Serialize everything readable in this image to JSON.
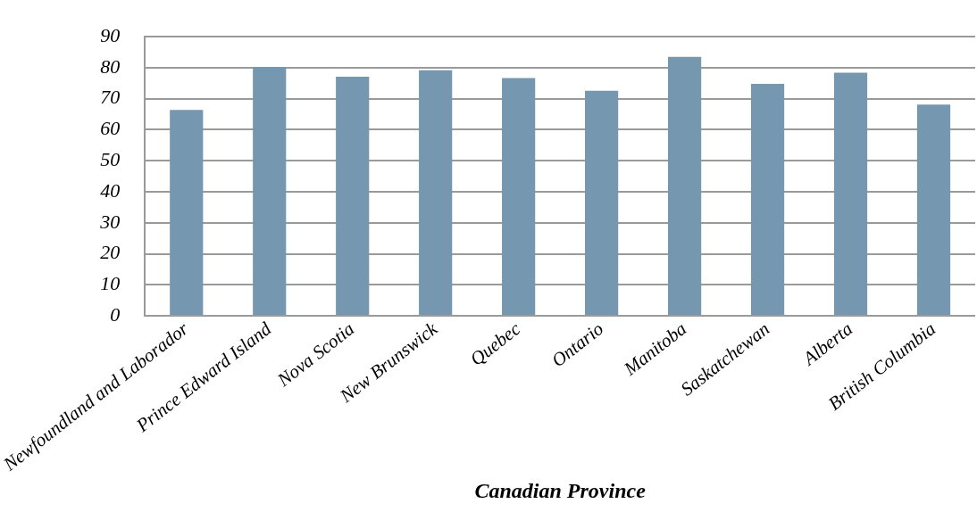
{
  "chart_data": {
    "type": "bar",
    "xlabel": "Canadian Province",
    "categories": [
      "Newfoundland and Laborador",
      "Prince Edward Island",
      "Nova Scotia",
      "New Brunswick",
      "Quebec",
      "Ontario",
      "Manitoba",
      "Saskatchewan",
      "Alberta",
      "British Columbia"
    ],
    "values": [
      66.4,
      80.3,
      77.1,
      79.2,
      76.7,
      72.6,
      83.5,
      74.8,
      78.4,
      68.1
    ],
    "color": "#7697b0",
    "ylim": [
      0,
      90
    ],
    "yticks": [
      0,
      10,
      20,
      30,
      40,
      50,
      60,
      70,
      80,
      90
    ],
    "grid": "y",
    "legend": false
  }
}
